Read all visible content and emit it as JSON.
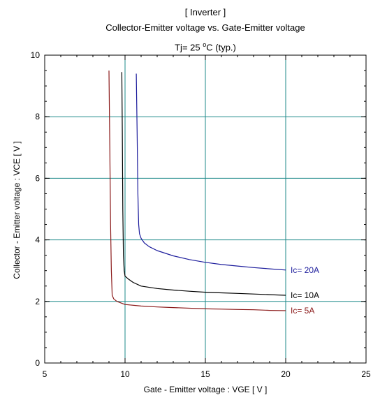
{
  "chart_data": {
    "type": "line",
    "title": "[ Inverter ]",
    "subtitle": "Collector-Emitter voltage  vs. Gate-Emitter voltage",
    "condition_prefix": "Tj= 25",
    "condition_degree": "o",
    "condition_suffix": "C  (typ.)",
    "xlabel": "Gate - Emitter voltage  :  VGE  [ V ]",
    "ylabel": "Collector - Emitter voltage  :  VCE  [ V ]",
    "xlim": [
      5,
      25
    ],
    "ylim": [
      0,
      10
    ],
    "xticks": [
      5,
      10,
      15,
      20,
      25
    ],
    "yticks": [
      0,
      2,
      4,
      6,
      8,
      10
    ],
    "grid": true,
    "series": [
      {
        "name": "Ic= 20A",
        "color": "#1c1c9c",
        "x": [
          10.7,
          10.75,
          10.8,
          10.85,
          10.9,
          11.0,
          11.2,
          11.5,
          12.0,
          13.0,
          14.0,
          15.0,
          16.0,
          17.0,
          18.0,
          19.0,
          20.0
        ],
        "y": [
          9.4,
          7.5,
          5.5,
          4.5,
          4.2,
          4.05,
          3.9,
          3.78,
          3.65,
          3.48,
          3.36,
          3.27,
          3.2,
          3.15,
          3.1,
          3.06,
          3.02
        ]
      },
      {
        "name": "Ic= 10A",
        "color": "#000000",
        "x": [
          9.8,
          9.83,
          9.86,
          9.9,
          9.95,
          10.0,
          10.2,
          10.5,
          11.0,
          12.0,
          13.0,
          14.0,
          15.0,
          16.0,
          17.0,
          18.0,
          19.0,
          20.0
        ],
        "y": [
          9.45,
          7.5,
          5.0,
          3.5,
          3.0,
          2.82,
          2.73,
          2.62,
          2.5,
          2.42,
          2.37,
          2.33,
          2.3,
          2.28,
          2.26,
          2.24,
          2.22,
          2.2
        ]
      },
      {
        "name": "Ic= 5A",
        "color": "#8b1a1a",
        "x": [
          9.0,
          9.05,
          9.1,
          9.15,
          9.2,
          9.3,
          9.5,
          9.8,
          10.0,
          11.0,
          12.0,
          13.0,
          14.0,
          15.0,
          16.0,
          17.0,
          18.0,
          19.0,
          20.0
        ],
        "y": [
          9.5,
          7.0,
          4.5,
          3.0,
          2.2,
          2.08,
          2.0,
          1.94,
          1.9,
          1.85,
          1.82,
          1.8,
          1.78,
          1.76,
          1.75,
          1.74,
          1.73,
          1.71,
          1.7
        ]
      }
    ]
  }
}
